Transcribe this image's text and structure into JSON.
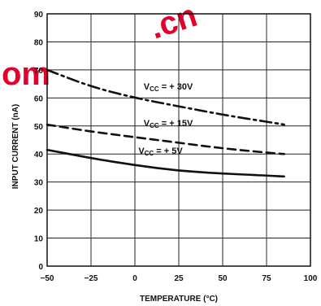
{
  "watermark": {
    "text_left": "om",
    "text_right": ".cn",
    "color": "#e4002b"
  },
  "chart_data": {
    "type": "line",
    "xlabel": "TEMPERATURE (°C)",
    "ylabel": "INPUT CURRENT (nA)",
    "xlim": [
      -50,
      100
    ],
    "ylim": [
      0,
      90
    ],
    "x_ticks": [
      "−50",
      "−25",
      "0",
      "25",
      "50",
      "75",
      "100"
    ],
    "x_tick_values": [
      -50,
      -25,
      0,
      25,
      50,
      75,
      100
    ],
    "y_ticks": [
      "0",
      "10",
      "20",
      "30",
      "40",
      "50",
      "60",
      "70",
      "80",
      "90"
    ],
    "y_tick_values": [
      0,
      10,
      20,
      30,
      40,
      50,
      60,
      70,
      80,
      90
    ],
    "grid": true,
    "series": [
      {
        "name": "VCC = +30V",
        "label_main": "V",
        "label_sub": "CC",
        "label_rest": " = + 30V",
        "style": "dash-dot",
        "x": [
          -50,
          -25,
          0,
          25,
          50,
          75,
          85
        ],
        "y": [
          70,
          64,
          60,
          57,
          54,
          51.5,
          50.5
        ]
      },
      {
        "name": "VCC = +15V",
        "label_main": "V",
        "label_sub": "CC",
        "label_rest": " = + 15V",
        "style": "dashed",
        "x": [
          -50,
          -25,
          0,
          25,
          50,
          75,
          85
        ],
        "y": [
          50.5,
          48,
          46,
          44,
          42,
          40.5,
          40
        ]
      },
      {
        "name": "VCC = +5V",
        "label_main": "V",
        "label_sub": "CC",
        "label_rest": " = + 5V",
        "style": "solid",
        "x": [
          -50,
          -25,
          0,
          25,
          50,
          75,
          85
        ],
        "y": [
          41.5,
          38.5,
          36,
          34,
          33,
          32.3,
          32
        ]
      }
    ]
  }
}
